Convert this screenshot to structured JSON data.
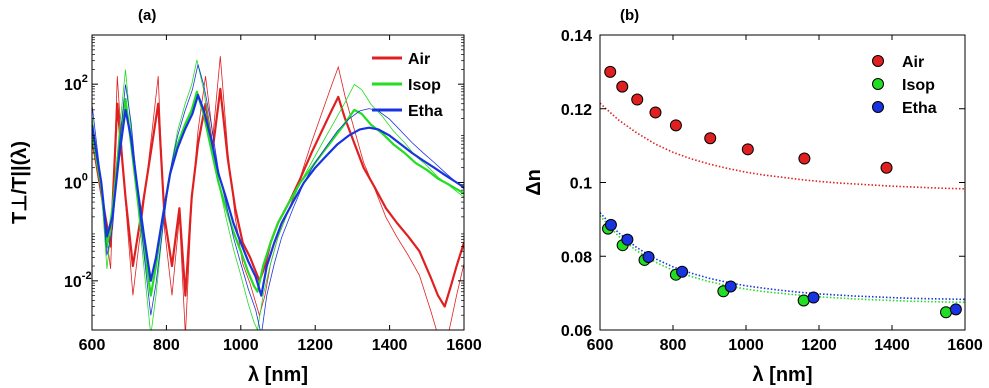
{
  "chart_data": [
    {
      "type": "line",
      "panel_label": "(a)",
      "xlabel": "λ [nm]",
      "ylabel": "T⊥/T||(λ)",
      "xlim": [
        600,
        1600
      ],
      "ylim": [
        0.001,
        1000
      ],
      "yscale": "log",
      "xticks": [
        600,
        800,
        1000,
        1200,
        1400,
        1600
      ],
      "yticks": [
        {
          "value": 0.01,
          "base": "10",
          "exp": "-2"
        },
        {
          "value": 1,
          "base": "10",
          "exp": "0"
        },
        {
          "value": 100,
          "base": "10",
          "exp": "2"
        }
      ],
      "grid": false,
      "legend_position": "top-right",
      "series": [
        {
          "name": "Air",
          "color": "#e02020",
          "x": [
            600,
            625,
            650,
            668,
            690,
            710,
            735,
            760,
            778,
            795,
            815,
            835,
            851,
            868,
            885,
            905,
            925,
            945,
            965,
            985,
            1005,
            1025,
            1050,
            1065,
            1080,
            1100,
            1130,
            1160,
            1190,
            1220,
            1245,
            1262,
            1280,
            1300,
            1330,
            1360,
            1390,
            1420,
            1450,
            1480,
            1510,
            1530,
            1548,
            1565,
            1580,
            1600
          ],
          "y": [
            8,
            0.6,
            0.05,
            40,
            0.5,
            0.02,
            0.3,
            5,
            40,
            0.2,
            0.02,
            0.3,
            0.005,
            0.5,
            6,
            40,
            5,
            80,
            3,
            0.3,
            0.06,
            0.03,
            0.01,
            0.02,
            0.06,
            0.15,
            0.4,
            1.2,
            4,
            12,
            30,
            55,
            20,
            8,
            2,
            0.8,
            0.3,
            0.15,
            0.08,
            0.04,
            0.012,
            0.005,
            0.003,
            0.008,
            0.02,
            0.06
          ]
        },
        {
          "name": "Isop",
          "color": "#22dd22",
          "x": [
            600,
            612,
            625,
            640,
            655,
            672,
            690,
            705,
            722,
            740,
            758,
            772,
            790,
            810,
            830,
            850,
            868,
            882,
            900,
            920,
            940,
            960,
            980,
            1000,
            1020,
            1035,
            1045,
            1060,
            1080,
            1100,
            1130,
            1160,
            1190,
            1220,
            1250,
            1280,
            1305,
            1325,
            1350,
            1380,
            1410,
            1440,
            1470,
            1500,
            1530,
            1560,
            1600
          ],
          "y": [
            10,
            3,
            0.8,
            0.05,
            0.3,
            5,
            50,
            6,
            0.5,
            0.05,
            0.005,
            0.02,
            0.2,
            1.5,
            6,
            15,
            30,
            70,
            25,
            5,
            1,
            0.3,
            0.1,
            0.04,
            0.015,
            0.008,
            0.006,
            0.02,
            0.06,
            0.15,
            0.4,
            1,
            2,
            4,
            8,
            16,
            30,
            25,
            15,
            10,
            6,
            4,
            2.5,
            1.8,
            1.2,
            0.9,
            0.6
          ]
        },
        {
          "name": "Etha",
          "color": "#1a33e0",
          "x": [
            600,
            612,
            625,
            640,
            655,
            672,
            690,
            705,
            722,
            740,
            758,
            772,
            790,
            810,
            830,
            850,
            870,
            885,
            900,
            920,
            940,
            960,
            980,
            1000,
            1020,
            1040,
            1055,
            1070,
            1090,
            1110,
            1140,
            1170,
            1200,
            1230,
            1260,
            1290,
            1320,
            1345,
            1370,
            1400,
            1430,
            1460,
            1490,
            1520,
            1550,
            1580,
            1600
          ],
          "y": [
            15,
            4,
            1,
            0.08,
            0.2,
            3,
            30,
            8,
            0.8,
            0.08,
            0.01,
            0.03,
            0.2,
            1.5,
            5,
            12,
            25,
            60,
            30,
            8,
            1.5,
            0.5,
            0.15,
            0.06,
            0.025,
            0.012,
            0.005,
            0.02,
            0.06,
            0.15,
            0.4,
            1,
            2,
            3.5,
            6,
            9,
            12,
            13,
            12,
            9,
            6,
            4,
            2.8,
            2,
            1.4,
            1,
            0.8
          ]
        }
      ]
    },
    {
      "type": "scatter",
      "panel_label": "(b)",
      "xlabel": "λ [nm]",
      "ylabel": "Δn",
      "xlim": [
        600,
        1600
      ],
      "ylim": [
        0.06,
        0.14
      ],
      "xticks": [
        600,
        800,
        1000,
        1200,
        1400,
        1600
      ],
      "yticks": [
        "0.06",
        "0.08",
        "0.1",
        "0.12",
        "0.14"
      ],
      "grid": false,
      "legend_position": "top-right",
      "series": [
        {
          "name": "Air",
          "color": "#e02020",
          "x": [
            628,
            661,
            702,
            752,
            808,
            902,
            1005,
            1160,
            1385
          ],
          "y": [
            0.13,
            0.126,
            0.1225,
            0.119,
            0.1155,
            0.112,
            0.109,
            0.1065,
            0.104
          ]
        },
        {
          "name": "Isop",
          "color": "#22dd22",
          "x": [
            622,
            662,
            722,
            808,
            938,
            1158,
            1548
          ],
          "y": [
            0.0875,
            0.083,
            0.079,
            0.075,
            0.0705,
            0.068,
            0.0648
          ]
        },
        {
          "name": "Etha",
          "color": "#1a33e0",
          "x": [
            630,
            675,
            733,
            825,
            958,
            1185,
            1575
          ],
          "y": [
            0.0885,
            0.0845,
            0.0798,
            0.0758,
            0.0718,
            0.0688,
            0.0656
          ]
        }
      ],
      "fit_curves": [
        {
          "color": "#e02020",
          "x": [
            600,
            650,
            700,
            750,
            800,
            850,
            900,
            950,
            1000,
            1050,
            1100,
            1150,
            1200,
            1250,
            1300,
            1350,
            1400,
            1450,
            1500,
            1550,
            1600
          ],
          "y": [
            0.1215,
            0.117,
            0.1135,
            0.1105,
            0.1082,
            0.1064,
            0.105,
            0.1038,
            0.1028,
            0.102,
            0.1014,
            0.1008,
            0.1003,
            0.0999,
            0.0996,
            0.0993,
            0.099,
            0.0988,
            0.0986,
            0.0984,
            0.0983
          ]
        },
        {
          "color": "#22dd22",
          "x": [
            600,
            650,
            700,
            750,
            800,
            850,
            900,
            950,
            1000,
            1050,
            1100,
            1150,
            1200,
            1250,
            1300,
            1350,
            1400,
            1450,
            1500,
            1550,
            1600
          ],
          "y": [
            0.091,
            0.0855,
            0.0815,
            0.0785,
            0.0762,
            0.0745,
            0.0731,
            0.072,
            0.0711,
            0.0704,
            0.0699,
            0.0694,
            0.069,
            0.0687,
            0.0684,
            0.0682,
            0.068,
            0.0678,
            0.0677,
            0.0676,
            0.0675
          ]
        },
        {
          "color": "#1a33e0",
          "x": [
            600,
            650,
            700,
            750,
            800,
            850,
            900,
            950,
            1000,
            1050,
            1100,
            1150,
            1200,
            1250,
            1300,
            1350,
            1400,
            1450,
            1500,
            1550,
            1600
          ],
          "y": [
            0.0918,
            0.0864,
            0.0824,
            0.0794,
            0.0771,
            0.0754,
            0.074,
            0.0729,
            0.072,
            0.0713,
            0.0707,
            0.0702,
            0.0698,
            0.0695,
            0.0692,
            0.069,
            0.0688,
            0.0686,
            0.0685,
            0.0684,
            0.0683
          ]
        }
      ]
    }
  ]
}
